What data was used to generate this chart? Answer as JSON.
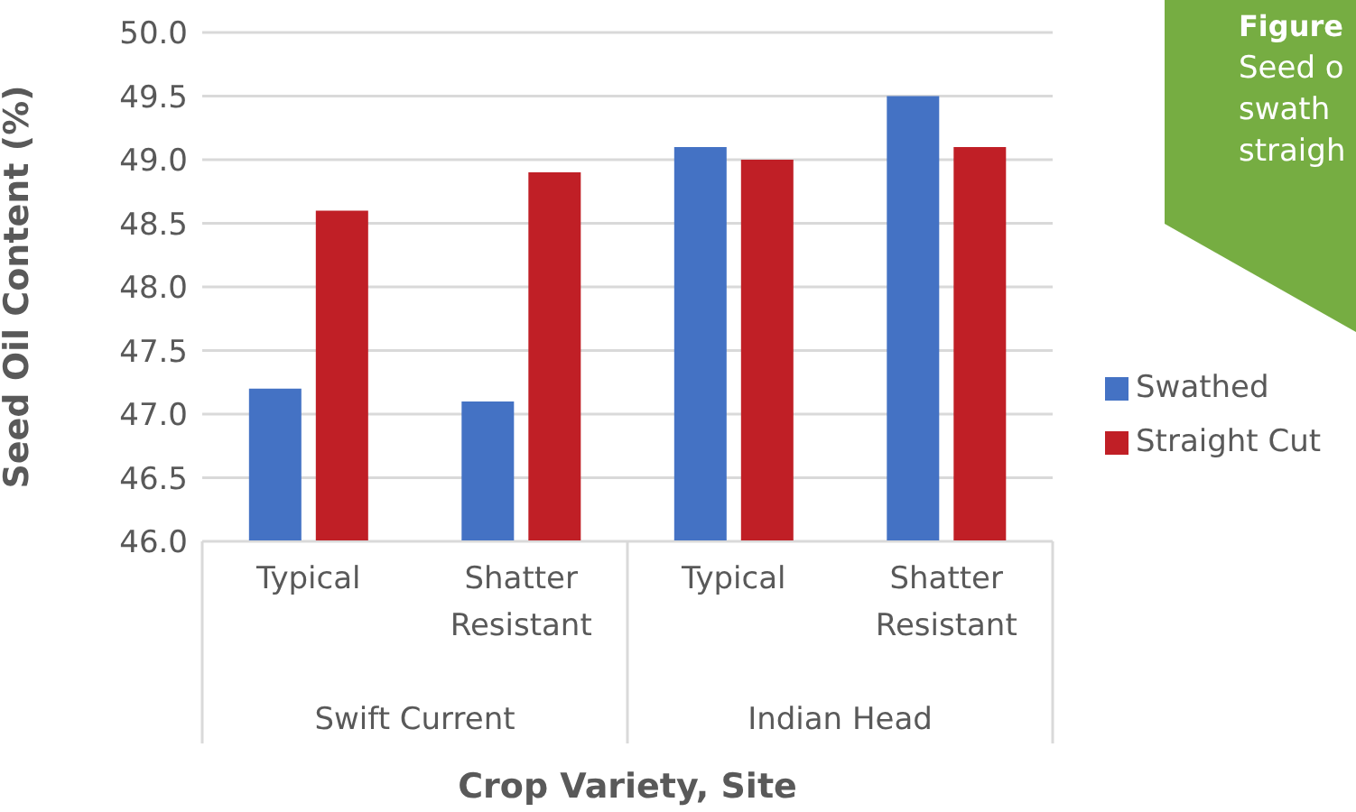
{
  "chart_data": {
    "type": "bar",
    "xlabel": "Crop Variety, Site",
    "ylabel": "Seed Oil Content (%)",
    "categories": [
      "Typical",
      "Shatter Resistant",
      "Typical",
      "Shatter Resistant"
    ],
    "series": [
      {
        "name": "Swathed",
        "color": "#4472c4",
        "values": [
          47.2,
          47.1,
          49.1,
          49.5
        ]
      },
      {
        "name": "Straight Cut",
        "color": "#c01f26",
        "values": [
          48.6,
          48.9,
          49.0,
          49.1
        ]
      }
    ],
    "ylim": [
      46,
      50
    ],
    "yticks": [
      {
        "value": 46,
        "label": "46.0"
      },
      {
        "value": 46.5,
        "label": "46.5"
      },
      {
        "value": 47,
        "label": "47.0"
      },
      {
        "value": 47.5,
        "label": "47.5"
      },
      {
        "value": 48,
        "label": "48.0"
      },
      {
        "value": 48.5,
        "label": "48.5"
      },
      {
        "value": 49,
        "label": "49.0"
      },
      {
        "value": 49.5,
        "label": "49.5"
      },
      {
        "value": 50,
        "label": "50.0"
      }
    ],
    "grid": "y",
    "legend": "right",
    "annotations": [
      "Swift Current",
      "Indian Head",
      "Figure",
      "Seed o",
      "swath",
      "straigh"
    ]
  }
}
